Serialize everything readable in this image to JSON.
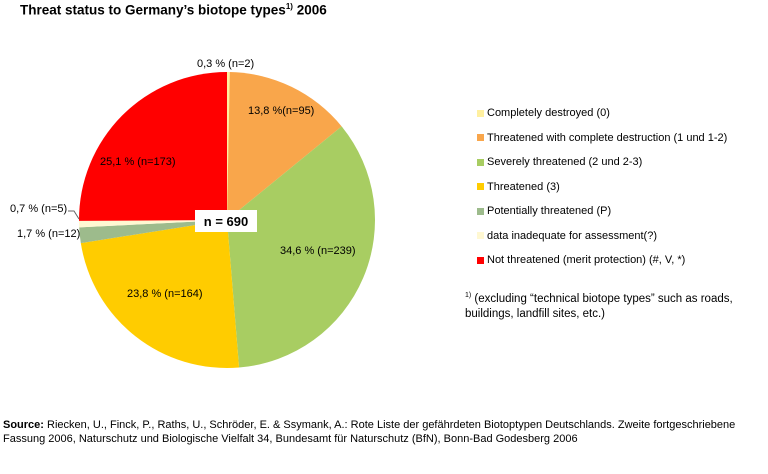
{
  "title": {
    "text": "Threat status to Germany’s biotope types",
    "sup": "1)",
    "year": "2006"
  },
  "chart_data": {
    "type": "pie",
    "title": "Threat status to Germany’s biotope types 1) 2006",
    "total_label": "n = 690",
    "slices": [
      {
        "name": "Completely destroyed (0)",
        "value": 0.3,
        "label": "0,3 % (n=2)",
        "color": "#FFF0A0"
      },
      {
        "name": "Threatened with complete destruction (1 und 1-2)",
        "value": 13.8,
        "label": "13,8 %(n=95)",
        "color": "#F9A64B"
      },
      {
        "name": "Severely threatened (2 und 2-3)",
        "value": 34.6,
        "label": "34,6 % (n=239)",
        "color": "#A8CD62"
      },
      {
        "name": "Threatened (3)",
        "value": 23.8,
        "label": "23,8 % (n=164)",
        "color": "#FFCC00"
      },
      {
        "name": "Potentially threatened (P)",
        "value": 1.7,
        "label": "1,7 % (n=12)",
        "color": "#9DBB8C"
      },
      {
        "name": "data inadequate for assessment(?)",
        "value": 0.7,
        "label": "0,7 % (n=5)",
        "color": "#FFF8D2"
      },
      {
        "name": "Not threatened (merit protection) (#, V, *)",
        "value": 25.1,
        "label": "25,1 % (n=173)",
        "color": "#FF0000"
      }
    ],
    "legend_position": "right"
  },
  "footnote": {
    "mark": "1)",
    "text": " (excluding “technical biotope types” such as roads, buildings,  landfill  sites, etc.)"
  },
  "source": {
    "label": "Source:",
    "text": " Riecken, U., Finck, P., Raths, U., Schröder, E. & Ssymank, A.: Rote Liste der gefährdeten Biotoptypen Deutschlands. Zweite fortgeschriebene Fassung 2006, Naturschutz und Biologische Vielfalt 34, Bundesamt für Naturschutz (BfN), Bonn-Bad Godesberg 2006"
  }
}
